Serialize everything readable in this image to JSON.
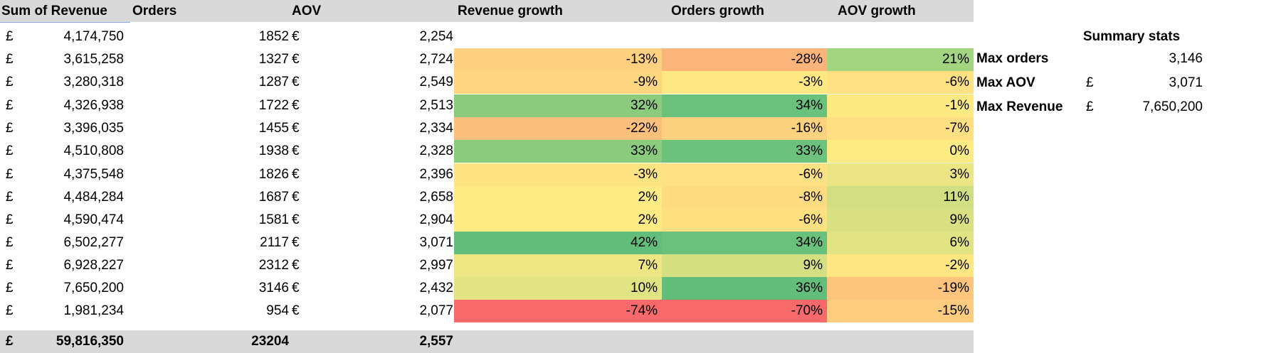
{
  "headers": {
    "revenue": "Sum of Revenue",
    "orders": "Orders",
    "aov": "AOV",
    "revenue_growth": "Revenue growth",
    "orders_growth": "Orders growth",
    "aov_growth": "AOV growth"
  },
  "rows": [
    {
      "cur": "£",
      "revenue": "4,174,750",
      "orders": "1852",
      "aov_cur": "€",
      "aov": "2,254",
      "rev_g": "",
      "ord_g": "",
      "aov_g": "",
      "rev_c": "#ffffff",
      "ord_c": "#ffffff",
      "aov_c": "#ffffff"
    },
    {
      "cur": "£",
      "revenue": "3,615,258",
      "orders": "1327",
      "aov_cur": "€",
      "aov": "2,724",
      "rev_g": "-13%",
      "ord_g": "-28%",
      "aov_g": "21%",
      "rev_c": "#fdd17f",
      "ord_c": "#fbb47a",
      "aov_c": "#a3d47f"
    },
    {
      "cur": "£",
      "revenue": "3,280,318",
      "orders": "1287",
      "aov_cur": "€",
      "aov": "2,549",
      "rev_g": "-9%",
      "ord_g": "-3%",
      "aov_g": "-6%",
      "rev_c": "#fed680",
      "ord_c": "#fee883",
      "aov_c": "#fee182"
    },
    {
      "cur": "£",
      "revenue": "4,326,938",
      "orders": "1722",
      "aov_cur": "€",
      "aov": "2,513",
      "rev_g": "32%",
      "ord_g": "34%",
      "aov_g": "-1%",
      "rev_c": "#8ccb7e",
      "ord_c": "#6ac17c",
      "aov_c": "#feea83"
    },
    {
      "cur": "£",
      "revenue": "3,396,035",
      "orders": "1455",
      "aov_cur": "€",
      "aov": "2,334",
      "rev_g": "-22%",
      "ord_g": "-16%",
      "aov_g": "-7%",
      "rev_c": "#fcbf7c",
      "ord_c": "#fdd27f",
      "aov_c": "#fedf82"
    },
    {
      "cur": "£",
      "revenue": "4,510,808",
      "orders": "1938",
      "aov_cur": "€",
      "aov": "2,328",
      "rev_g": "33%",
      "ord_g": "33%",
      "aov_g": "0%",
      "rev_c": "#8acb7e",
      "ord_c": "#6cc27c",
      "aov_c": "#feeb84"
    },
    {
      "cur": "£",
      "revenue": "4,375,548",
      "orders": "1826",
      "aov_cur": "€",
      "aov": "2,396",
      "rev_g": "-3%",
      "ord_g": "-6%",
      "aov_g": "3%",
      "rev_c": "#fee382",
      "ord_c": "#fee182",
      "aov_c": "#ebe583"
    },
    {
      "cur": "£",
      "revenue": "4,484,284",
      "orders": "1687",
      "aov_cur": "€",
      "aov": "2,658",
      "rev_g": "2%",
      "ord_g": "-8%",
      "aov_g": "11%",
      "rev_c": "#ffeb84",
      "ord_c": "#fedb81",
      "aov_c": "#d2de82"
    },
    {
      "cur": "£",
      "revenue": "4,590,474",
      "orders": "1581",
      "aov_cur": "€",
      "aov": "2,904",
      "rev_g": "2%",
      "ord_g": "-6%",
      "aov_g": "9%",
      "rev_c": "#ffeb84",
      "ord_c": "#fee081",
      "aov_c": "#d8e082"
    },
    {
      "cur": "£",
      "revenue": "6,502,277",
      "orders": "2117",
      "aov_cur": "€",
      "aov": "3,071",
      "rev_g": "42%",
      "ord_g": "34%",
      "aov_g": "6%",
      "rev_c": "#63be7b",
      "ord_c": "#6ac17c",
      "aov_c": "#e2e383"
    },
    {
      "cur": "£",
      "revenue": "6,928,227",
      "orders": "2312",
      "aov_cur": "€",
      "aov": "2,997",
      "rev_g": "7%",
      "ord_g": "9%",
      "aov_g": "-2%",
      "rev_c": "#eee683",
      "ord_c": "#d4df82",
      "aov_c": "#fee683"
    },
    {
      "cur": "£",
      "revenue": "7,650,200",
      "orders": "3146",
      "aov_cur": "€",
      "aov": "2,432",
      "rev_g": "10%",
      "ord_g": "36%",
      "aov_g": "-19%",
      "rev_c": "#e2e383",
      "ord_c": "#63be7b",
      "aov_c": "#fcc47d"
    },
    {
      "cur": "£",
      "revenue": "1,981,234",
      "orders": "954",
      "aov_cur": "€",
      "aov": "2,077",
      "rev_g": "-74%",
      "ord_g": "-70%",
      "aov_g": "-15%",
      "rev_c": "#f8696b",
      "ord_c": "#f8696b",
      "aov_c": "#fdcc7e"
    }
  ],
  "totals": {
    "cur": "£",
    "revenue": "59,816,350",
    "orders": "23204",
    "aov": "2,557"
  },
  "summary": {
    "title": "Summary stats",
    "rows": [
      {
        "label": "Max orders",
        "cur": "",
        "value": "3,146"
      },
      {
        "label": "Max AOV",
        "cur": "£",
        "value": "3,071"
      },
      {
        "label": "Max Revenue",
        "cur": "£",
        "value": "7,650,200"
      }
    ]
  }
}
